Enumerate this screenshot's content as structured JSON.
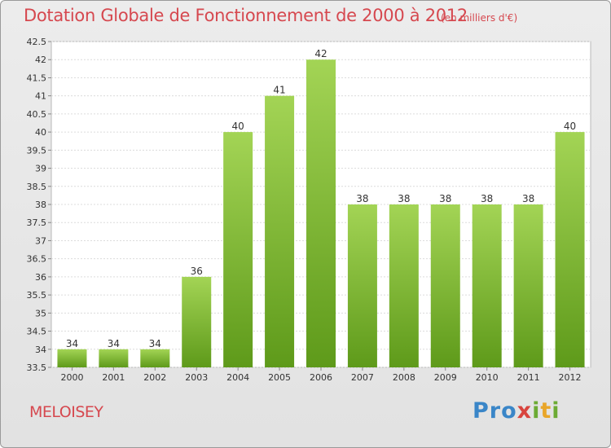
{
  "title": "Dotation Globale de Fonctionnement de 2000 à 2012",
  "subtitle": "(en milliers d'€)",
  "commune": "MELOISEY",
  "logo": {
    "p1": "Pro",
    "p2": "x",
    "p3": "i",
    "p4": "t",
    "p5": "i"
  },
  "colors": {
    "bar_top": "#a3d455",
    "bar_bottom": "#5e9a1a",
    "title": "#d6484f"
  },
  "chart_data": {
    "type": "bar",
    "title": "Dotation Globale de Fonctionnement de 2000 à 2012",
    "subtitle": "(en milliers d'€)",
    "categories": [
      "2000",
      "2001",
      "2002",
      "2003",
      "2004",
      "2005",
      "2006",
      "2007",
      "2008",
      "2009",
      "2010",
      "2011",
      "2012"
    ],
    "values": [
      34,
      34,
      34,
      36,
      40,
      41,
      42,
      38,
      38,
      38,
      38,
      38,
      40
    ],
    "data_labels": [
      "34",
      "34",
      "34",
      "36",
      "40",
      "41",
      "42",
      "38",
      "38",
      "38",
      "38",
      "38",
      "40"
    ],
    "ylim": [
      33.5,
      42.5
    ],
    "yticks": [
      "33.5",
      "34",
      "34.5",
      "35",
      "35.5",
      "36",
      "36.5",
      "37",
      "37.5",
      "38",
      "38.5",
      "39",
      "39.5",
      "40",
      "40.5",
      "41",
      "41.5",
      "42",
      "42.5"
    ],
    "grid": true,
    "xlabel": "",
    "ylabel": ""
  }
}
